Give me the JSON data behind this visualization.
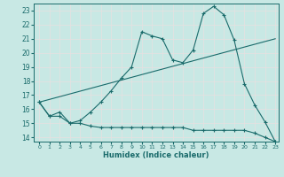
{
  "xlabel": "Humidex (Indice chaleur)",
  "xlim": [
    -0.5,
    23.3
  ],
  "ylim": [
    13.7,
    23.5
  ],
  "xticks": [
    0,
    1,
    2,
    3,
    4,
    5,
    6,
    7,
    8,
    9,
    10,
    11,
    12,
    13,
    14,
    15,
    16,
    17,
    18,
    19,
    20,
    21,
    22,
    23
  ],
  "yticks": [
    14,
    15,
    16,
    17,
    18,
    19,
    20,
    21,
    22,
    23
  ],
  "bg_color": "#c8e8e4",
  "line_color": "#1a6b6b",
  "grid_color": "#e8e0e0",
  "line1_x": [
    0,
    1,
    2,
    3,
    4,
    5,
    6,
    7,
    8,
    9,
    10,
    11,
    12,
    13,
    14,
    15,
    16,
    17,
    18,
    19,
    20,
    21,
    22,
    23
  ],
  "line1_y": [
    16.5,
    15.5,
    15.8,
    15.0,
    15.2,
    15.8,
    16.5,
    17.3,
    18.2,
    19.0,
    21.5,
    21.2,
    21.0,
    19.5,
    19.3,
    20.2,
    22.8,
    23.3,
    22.7,
    20.9,
    17.8,
    16.3,
    15.1,
    13.7
  ],
  "line2_x": [
    0,
    23
  ],
  "line2_y": [
    16.5,
    21.0
  ],
  "line3_x": [
    0,
    1,
    2,
    3,
    4,
    5,
    6,
    7,
    8,
    9,
    10,
    11,
    12,
    13,
    14,
    15,
    16,
    17,
    18,
    19,
    20,
    21,
    22,
    23
  ],
  "line3_y": [
    16.5,
    15.5,
    15.5,
    15.0,
    15.0,
    14.8,
    14.7,
    14.7,
    14.7,
    14.7,
    14.7,
    14.7,
    14.7,
    14.7,
    14.7,
    14.5,
    14.5,
    14.5,
    14.5,
    14.5,
    14.5,
    14.3,
    14.0,
    13.7
  ]
}
